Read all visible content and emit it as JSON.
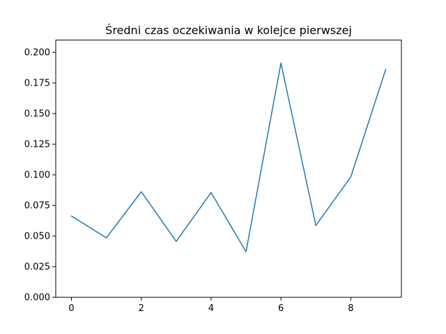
{
  "chart_data": {
    "type": "line",
    "title": "Średni czas oczekiwania w kolejce pierwszej",
    "xlabel": "",
    "ylabel": "",
    "xlim": [
      -0.45,
      9.45
    ],
    "ylim": [
      0.0,
      0.21
    ],
    "xticks": [
      0,
      2,
      4,
      6,
      8
    ],
    "yticks": [
      0.0,
      0.025,
      0.05,
      0.075,
      0.1,
      0.125,
      0.15,
      0.175,
      0.2
    ],
    "ytick_labels": [
      "0.000",
      "0.025",
      "0.050",
      "0.075",
      "0.100",
      "0.125",
      "0.150",
      "0.175",
      "0.200"
    ],
    "grid": false,
    "line_color": "#1f77b4",
    "series": [
      {
        "x": [
          0,
          1,
          2,
          3,
          4,
          5,
          6,
          7,
          8,
          9
        ],
        "values": [
          0.0663,
          0.0485,
          0.0862,
          0.0456,
          0.0855,
          0.0372,
          0.1912,
          0.0586,
          0.0982,
          0.186
        ]
      }
    ]
  }
}
